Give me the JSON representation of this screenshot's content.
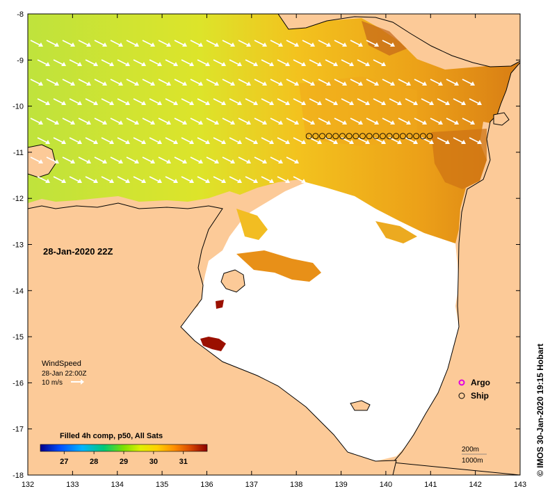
{
  "map": {
    "date_label": "28-Jan-2020 22Z",
    "credit": "© IMOS 30-Jan-2020 19:15 Hobart",
    "x_ticks": [
      "132",
      "133",
      "134",
      "135",
      "136",
      "137",
      "138",
      "139",
      "140",
      "141",
      "142",
      "143"
    ],
    "y_ticks": [
      "-8",
      "-9",
      "-10",
      "-11",
      "-12",
      "-13",
      "-14",
      "-15",
      "-16",
      "-17",
      "-18"
    ],
    "lon_range": [
      132,
      143
    ],
    "lat_range": [
      -8,
      -18
    ]
  },
  "wind": {
    "title": "WindSpeed",
    "time": "28-Jan 22:00Z",
    "scale_label": "10 m/s"
  },
  "legend": {
    "argo": "Argo",
    "ship": "Ship"
  },
  "colorbar": {
    "title": "Filled 4h comp, p50, All Sats",
    "ticks": [
      "27",
      "28",
      "29",
      "30",
      "31"
    ],
    "range": [
      26.2,
      31.8
    ],
    "colors": [
      "#00008b",
      "#0050ff",
      "#00b4ff",
      "#00c878",
      "#7ee000",
      "#e0f000",
      "#ffd000",
      "#ff9000",
      "#e06000",
      "#b01000",
      "#8b0000"
    ]
  },
  "depth_contours": {
    "shallow": "200m",
    "deep": "1000m"
  },
  "ship_track": {
    "lat": -10.65,
    "lons": [
      138.28,
      138.43,
      138.58,
      138.73,
      138.88,
      139.03,
      139.18,
      139.33,
      139.48,
      139.63,
      139.78,
      139.93,
      140.08,
      140.23,
      140.38,
      140.53,
      140.68,
      140.83,
      140.98
    ]
  },
  "colors": {
    "land": "#fcca98",
    "no_data": "#ffffff",
    "sst_green": "#c7e43a",
    "sst_yellow": "#f3b521",
    "sst_orange": "#e89018",
    "sst_dark": "#c96a10"
  }
}
